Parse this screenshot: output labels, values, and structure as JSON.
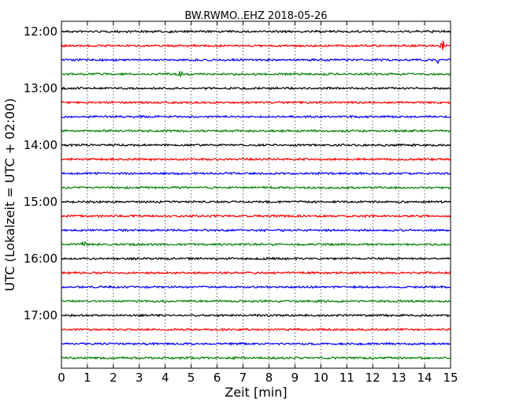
{
  "chart_data": {
    "type": "line",
    "title": "BW.RWMO..EHZ 2018-05-26",
    "xlabel": "Zeit  [min]",
    "ylabel": "UTC (Lokalzeit = UTC + 02:00)",
    "xlim": [
      0,
      15
    ],
    "x_ticks": [
      "0",
      "1",
      "2",
      "3",
      "4",
      "5",
      "6",
      "7",
      "8",
      "9",
      "10",
      "11",
      "12",
      "13",
      "14",
      "15"
    ],
    "y_ticks": [
      "12:00",
      "13:00",
      "14:00",
      "15:00",
      "16:00",
      "17:00"
    ],
    "grid": "vertical dotted at each minute",
    "trace_colors": [
      "#000000",
      "#ff0000",
      "#0000ff",
      "#008000"
    ],
    "traces": [
      {
        "start": "12:00",
        "color": "#000000"
      },
      {
        "start": "12:15",
        "color": "#ff0000",
        "events": [
          {
            "minute": 14.7,
            "amplitude": 12
          },
          {
            "minute": 0.1,
            "amplitude": 3
          }
        ]
      },
      {
        "start": "12:30",
        "color": "#0000ff",
        "events": [
          {
            "minute": 14.5,
            "amplitude": 4
          }
        ]
      },
      {
        "start": "12:45",
        "color": "#008000",
        "events": [
          {
            "minute": 4.6,
            "amplitude": 7
          }
        ]
      },
      {
        "start": "13:00",
        "color": "#000000"
      },
      {
        "start": "13:15",
        "color": "#ff0000"
      },
      {
        "start": "13:30",
        "color": "#0000ff"
      },
      {
        "start": "13:45",
        "color": "#008000"
      },
      {
        "start": "14:00",
        "color": "#000000"
      },
      {
        "start": "14:15",
        "color": "#ff0000"
      },
      {
        "start": "14:30",
        "color": "#0000ff"
      },
      {
        "start": "14:45",
        "color": "#008000"
      },
      {
        "start": "15:00",
        "color": "#000000"
      },
      {
        "start": "15:15",
        "color": "#ff0000"
      },
      {
        "start": "15:30",
        "color": "#0000ff"
      },
      {
        "start": "15:45",
        "color": "#008000",
        "events": [
          {
            "minute": 0.85,
            "amplitude": 9
          }
        ]
      },
      {
        "start": "16:00",
        "color": "#000000"
      },
      {
        "start": "16:15",
        "color": "#ff0000"
      },
      {
        "start": "16:30",
        "color": "#0000ff"
      },
      {
        "start": "16:45",
        "color": "#008000"
      },
      {
        "start": "17:00",
        "color": "#000000"
      },
      {
        "start": "17:15",
        "color": "#ff0000"
      },
      {
        "start": "17:30",
        "color": "#0000ff"
      },
      {
        "start": "17:45",
        "color": "#008000"
      }
    ]
  }
}
